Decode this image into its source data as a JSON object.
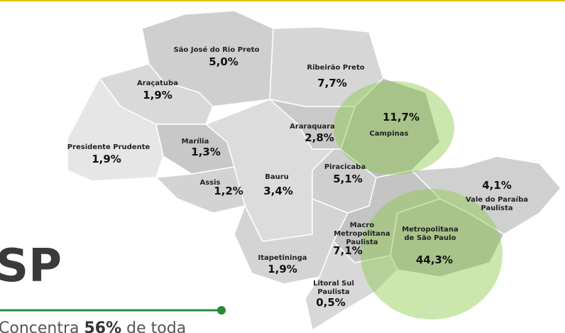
{
  "regions": [
    {
      "name_lines": [
        "São José do Rio Preto"
      ],
      "value": "5,0%"
    },
    {
      "name_lines": [
        "Ribeirão Preto"
      ],
      "value": "7,7%"
    },
    {
      "name_lines": [
        "Araçatuba"
      ],
      "value": "1,9%"
    },
    {
      "name_lines": [
        "Campinas"
      ],
      "value": "11,7%"
    },
    {
      "name_lines": [
        "Araraquara"
      ],
      "value": "2,8%"
    },
    {
      "name_lines": [
        "Presidente Prudente"
      ],
      "value": "1,9%"
    },
    {
      "name_lines": [
        "Marília"
      ],
      "value": "1,3%"
    },
    {
      "name_lines": [
        "Bauru"
      ],
      "value": "3,4%"
    },
    {
      "name_lines": [
        "Piracicaba"
      ],
      "value": "5,1%"
    },
    {
      "name_lines": [
        "Assis"
      ],
      "value": "1,2%"
    },
    {
      "name_lines": [
        "Vale do Paraíba",
        "Paulista"
      ],
      "value": "4,1%"
    },
    {
      "name_lines": [
        "Macro",
        "Metropolitana",
        "Paulista"
      ],
      "value": "7,1%"
    },
    {
      "name_lines": [
        "Metropolitana",
        "de São Paulo"
      ],
      "value": "44,3%"
    },
    {
      "name_lines": [
        "Itapetininga"
      ],
      "value": "1,9%"
    },
    {
      "name_lines": [
        "Litoral Sul",
        "Paulista"
      ],
      "value": "0,5%"
    }
  ],
  "heading": "SP",
  "caption": {
    "before": "Concentra ",
    "bold": "56%",
    "after": " de toda"
  }
}
